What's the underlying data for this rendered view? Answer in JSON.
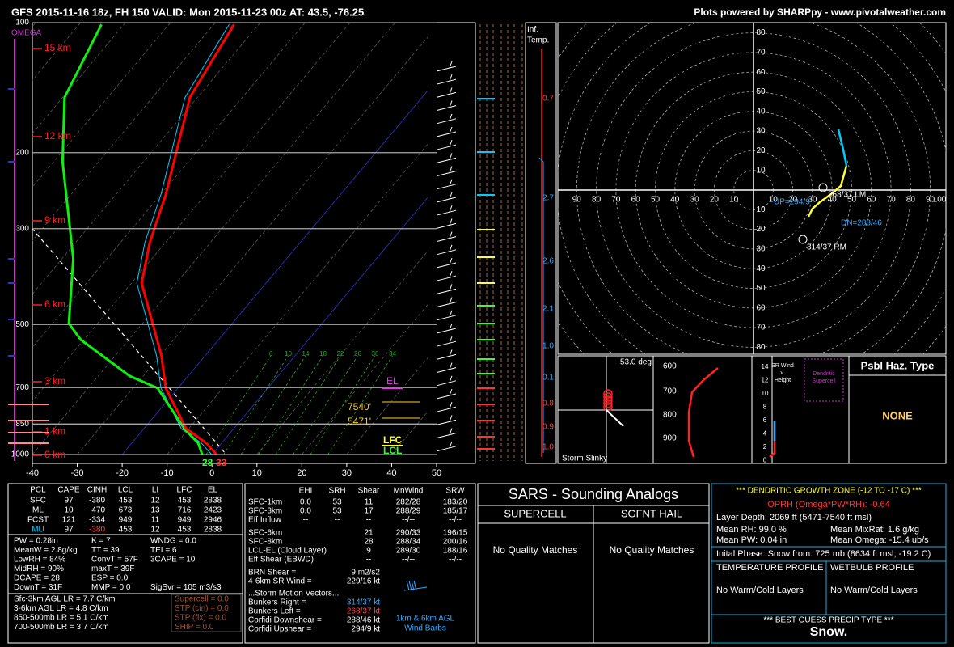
{
  "header": {
    "title": "GFS 2015-11-16 18z, FH 150    VALID: Mon 2015-11-23 00z    AT: 43.5, -76.25",
    "credit": "Plots powered by SHARPpy - www.pivotalweather.com"
  },
  "skewt": {
    "pressure_labels": [
      100,
      200,
      300,
      500,
      700,
      850,
      1000
    ],
    "height_labels": [
      "15 km",
      "12 km",
      "9 km",
      "6 km",
      "3 km",
      "1 km",
      "0 km"
    ],
    "temp_labels": [
      -40,
      -30,
      -20,
      -10,
      0,
      10,
      20,
      30,
      40,
      50
    ],
    "omega_label": "OMEGA",
    "temperature": [
      [
        1000,
        1
      ],
      [
        941,
        -3.4
      ],
      [
        871,
        -10.6
      ],
      [
        702,
        -22.7
      ],
      [
        591,
        -29.7
      ],
      [
        401,
        -47.7
      ],
      [
        323,
        -53.5
      ],
      [
        249,
        -59
      ],
      [
        149,
        -71.7
      ],
      [
        101,
        -75.5
      ]
    ],
    "dewpoint": [
      [
        1000,
        -2.2
      ],
      [
        941,
        -5.2
      ],
      [
        871,
        -11
      ],
      [
        702,
        -24.5
      ],
      [
        658,
        -33
      ],
      [
        542,
        -50.7
      ],
      [
        497,
        -56.4
      ],
      [
        352,
        -67.5
      ],
      [
        210,
        -88
      ],
      [
        149,
        -99.6
      ],
      [
        101,
        -105
      ]
    ],
    "mixing_ratio_labels": [
      6,
      10,
      14,
      18,
      22,
      26,
      30,
      34
    ],
    "annotations": {
      "el": "EL",
      "dgz_top": "7540'",
      "dgz_bottom": "5471'",
      "lfc": "LFC",
      "lcl": "LCL",
      "sfc_dewpoint": "28",
      "sfc_temp": "33"
    }
  },
  "inferred_temp": {
    "title": [
      "Inf.",
      "Temp."
    ],
    "values": [
      "0.7",
      "2.7",
      "2.6",
      "2.1",
      "1.0",
      "0.1",
      "0.8",
      "0.9",
      "1.0"
    ]
  },
  "hodograph": {
    "ring_labels": [
      10,
      20,
      30,
      40,
      50,
      60,
      70,
      80
    ],
    "x_labels_left": [
      90,
      80,
      70,
      60,
      50,
      40,
      30,
      20,
      10
    ],
    "x_labels_right": [
      10,
      20,
      30,
      40,
      50,
      60,
      70,
      80,
      90,
      100
    ],
    "annotations": {
      "lm": "268/37 LM",
      "rm": "314/37 RM",
      "dn": "DN=288/46",
      "up": "UP=294/9"
    }
  },
  "slinky": {
    "angle": "53.0 deg",
    "title": "Storm Slinky"
  },
  "theta_e": {
    "labels": [
      600,
      700,
      800,
      900
    ]
  },
  "sr_wind": {
    "title": [
      "SR Wind",
      "v.",
      "Height"
    ],
    "labels": [
      14,
      12,
      10,
      8,
      6,
      4,
      2,
      0
    ],
    "inner": [
      "Dendritic",
      "Supercell"
    ]
  },
  "hazard": {
    "title": "Psbl Haz. Type",
    "value": "NONE"
  },
  "thermo": {
    "header": [
      "PCL",
      "CAPE",
      "CINH",
      "LCL",
      "LI",
      "LFC",
      "EL"
    ],
    "rows": [
      [
        "SFC",
        "97",
        "-380",
        "453",
        "12",
        "453",
        "2838"
      ],
      [
        "ML",
        "10",
        "-470",
        "673",
        "13",
        "716",
        "2423"
      ],
      [
        "FCST",
        "121",
        "-334",
        "949",
        "11",
        "949",
        "2946"
      ],
      [
        "MU",
        "97",
        "-380",
        "453",
        "12",
        "453",
        "2838"
      ]
    ],
    "col1": [
      "PW = 0.28in",
      "MeanW = 2.8g/kg",
      "LowRH = 84%",
      "MidRH = 90%",
      "DCAPE = 28",
      "DownT = 31F"
    ],
    "col2": [
      "K = 7",
      "TT = 39",
      "ConvT = 57F",
      "maxT = 39F",
      "ESP = 0.0",
      "MMP = 0.0"
    ],
    "col3": [
      "WNDG = 0.0",
      "TEI = 6",
      "3CAPE = 10"
    ],
    "sigsvr": "SigSvr = 105 m3/s3",
    "lapse": [
      "Sfc-3km AGL LR = 7.7 C/km",
      "3-6km AGL LR = 4.8 C/km",
      "850-500mb LR = 5.1 C/km",
      "700-500mb LR = 3.7 C/km"
    ],
    "params": [
      "Supercell = 0.0",
      "STP (cin) = 0.0",
      "STP (fix) = 0.0",
      "SHIP = 0.0"
    ]
  },
  "kinematics": {
    "header": [
      "EHI",
      "SRH",
      "Shear",
      "MnWind",
      "SRW"
    ],
    "rows": [
      [
        "SFC-1km",
        "0.0",
        "53",
        "11",
        "282/28",
        "183/20"
      ],
      [
        "SFC-3km",
        "0.0",
        "53",
        "17",
        "288/29",
        "185/17"
      ],
      [
        "Eff Inflow",
        "--",
        "--",
        "--",
        "--/--",
        "--/--"
      ],
      [
        "SFC-6km",
        null,
        null,
        "21",
        "290/33",
        "196/15"
      ],
      [
        "SFC-8km",
        null,
        null,
        "28",
        "288/34",
        "200/16"
      ],
      [
        "LCL-EL (Cloud Layer)",
        null,
        null,
        "9",
        "289/30",
        "188/16"
      ],
      [
        "Eff Shear (EBWD)",
        null,
        null,
        "--",
        "--/--",
        "--/--"
      ]
    ],
    "extra": [
      [
        "BRN Shear =",
        "9 m2/s2"
      ],
      [
        "4-6km SR Wind =",
        "229/16 kt"
      ]
    ],
    "motion_title": "...Storm Motion Vectors...",
    "motion": [
      [
        "Bunkers Right =",
        "314/37 kt"
      ],
      [
        "Bunkers Left =",
        "268/37 kt"
      ],
      [
        "Corfidi Downshear =",
        "288/46 kt"
      ],
      [
        "Corfidi Upshear =",
        "294/9 kt"
      ]
    ],
    "barb_note": [
      "1km & 6km AGL",
      "Wind Barbs"
    ]
  },
  "sars": {
    "title": "SARS - Sounding Analogs",
    "supercell": "SUPERCELL",
    "hail": "SGFNT HAIL",
    "supercell_result": "No Quality Matches",
    "hail_result": "No Quality Matches"
  },
  "dgz": {
    "title": "*** DENDRITIC GROWTH ZONE (-12 TO -17 C) ***",
    "oprh": "OPRH (Omega*PW*RH): -0.64",
    "depth": "Layer Depth: 2069 ft (5471-7540 ft msl)",
    "rh": "Mean RH: 99.0 %",
    "mixrat": "Mean MixRat: 1.6 g/kg",
    "pw": "Mean PW: 0.04 in",
    "omega": "Mean Omega: -15.4 ub/s",
    "phase": "Inital Phase: Snow from: 725 mb (8634 ft msl; -19.2 C)",
    "temp_profile": "TEMPERATURE PROFILE",
    "wetbulb_profile": "WETBULB PROFILE",
    "temp_result": "No Warm/Cold Layers",
    "wetbulb_result": "No Warm/Cold Layers",
    "precip_title": "*** BEST GUESS PRECIP TYPE ***",
    "precip": "Snow."
  }
}
